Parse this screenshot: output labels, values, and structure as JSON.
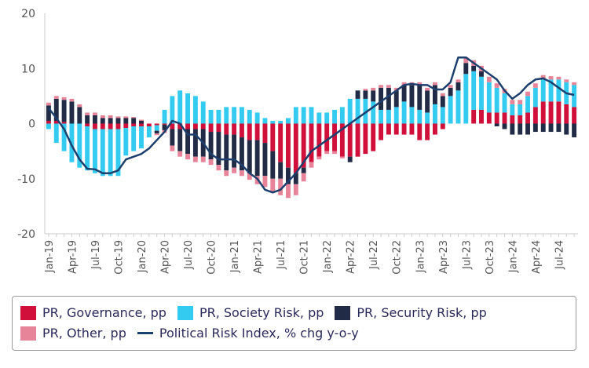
{
  "chart_data": {
    "type": "bar",
    "stacked": true,
    "ylim": [
      -20,
      20
    ],
    "yticks": [
      -20,
      -10,
      0,
      10,
      20
    ],
    "grid": false,
    "legend_position": "bottom",
    "categories": [
      "Jan-19",
      "Feb-19",
      "Mar-19",
      "Apr-19",
      "May-19",
      "Jun-19",
      "Jul-19",
      "Aug-19",
      "Sep-19",
      "Oct-19",
      "Nov-19",
      "Dec-19",
      "Jan-20",
      "Feb-20",
      "Mar-20",
      "Apr-20",
      "May-20",
      "Jun-20",
      "Jul-20",
      "Aug-20",
      "Sep-20",
      "Oct-20",
      "Nov-20",
      "Dec-20",
      "Jan-21",
      "Feb-21",
      "Mar-21",
      "Apr-21",
      "May-21",
      "Jun-21",
      "Jul-21",
      "Aug-21",
      "Sep-21",
      "Oct-21",
      "Nov-21",
      "Dec-21",
      "Jan-22",
      "Feb-22",
      "Mar-22",
      "Apr-22",
      "May-22",
      "Jun-22",
      "Jul-22",
      "Aug-22",
      "Sep-22",
      "Oct-22",
      "Nov-22",
      "Dec-22",
      "Jan-23",
      "Feb-23",
      "Mar-23",
      "Apr-23",
      "May-23",
      "Jun-23",
      "Jul-23",
      "Aug-23",
      "Sep-23",
      "Oct-23",
      "Nov-23",
      "Dec-23",
      "Jan-24",
      "Feb-24",
      "Mar-24",
      "Apr-24",
      "May-24",
      "Jun-24",
      "Jul-24",
      "Aug-24",
      "Sep-24"
    ],
    "x_tick_labels": [
      "Jan-19",
      "Apr-19",
      "Jul-19",
      "Oct-19",
      "Jan-20",
      "Apr-20",
      "Jul-20",
      "Oct-20",
      "Jan-21",
      "Apr-21",
      "Jul-21",
      "Oct-21",
      "Jan-22",
      "Apr-22",
      "Jul-22",
      "Oct-22",
      "Jan-23",
      "Apr-23",
      "Jul-23",
      "Oct-23",
      "Jan-24",
      "Apr-24",
      "Jul-24"
    ],
    "series": [
      {
        "name": "PR, Governance, pp",
        "kind": "bar",
        "color": "#d0103a",
        "values": [
          0.5,
          0.5,
          0.3,
          0,
          0,
          -0.5,
          -1,
          -1,
          -1,
          -1,
          -0.8,
          -0.5,
          -0.5,
          -0.5,
          -0.3,
          -0.2,
          -1,
          -1,
          -1,
          -1,
          -1,
          -1.5,
          -1.5,
          -2,
          -2,
          -2.5,
          -3,
          -3,
          -3.5,
          -5,
          -7,
          -8,
          -9,
          -8,
          -7,
          -6,
          -5,
          -5,
          -6,
          -6,
          -6,
          -5.5,
          -5,
          -3,
          -2,
          -2,
          -2,
          -2,
          -3,
          -3,
          -2,
          -1,
          0,
          0,
          0,
          2.5,
          2.5,
          2,
          2,
          2,
          1.5,
          1.5,
          2,
          3,
          4,
          4,
          4,
          3.5,
          3
        ]
      },
      {
        "name": "PR, Society Risk, pp",
        "kind": "bar",
        "color": "#33ccf0",
        "values": [
          -1,
          -3.5,
          -5,
          -7,
          -8,
          -8,
          -8,
          -8.5,
          -8.5,
          -8.5,
          -5,
          -4.5,
          -4,
          -2,
          -1,
          2.5,
          5,
          6,
          5.5,
          5,
          4,
          2.5,
          2.5,
          3,
          3,
          3,
          2.5,
          2,
          1,
          0.5,
          0.5,
          1,
          3,
          3,
          3,
          2,
          2,
          2.5,
          3,
          4.5,
          4.5,
          4.5,
          4,
          2.5,
          2.5,
          3,
          4,
          3,
          2.5,
          2,
          3.5,
          3,
          5,
          6,
          9,
          7,
          6,
          5.5,
          4.5,
          3.5,
          2,
          2,
          3,
          3.5,
          4,
          4,
          4,
          4,
          4
        ]
      },
      {
        "name": "PR, Security Risk, pp",
        "kind": "bar",
        "color": "#222b45",
        "values": [
          2.8,
          4,
          4,
          4,
          3,
          1.5,
          1.5,
          1,
          1,
          1,
          1,
          1,
          0.5,
          0,
          -0.5,
          -1,
          -3,
          -4,
          -4.5,
          -5,
          -5,
          -5,
          -6,
          -6.5,
          -6,
          -6,
          -6,
          -6.5,
          -6,
          -5,
          -3,
          -3,
          -2,
          -1,
          0,
          0,
          0,
          0,
          0,
          -1,
          1.5,
          1.5,
          2,
          4,
          4,
          3,
          3,
          4,
          4.5,
          4,
          3.5,
          2,
          1.5,
          1.5,
          2,
          1,
          1,
          0,
          -0.5,
          -1,
          -2,
          -2,
          -2,
          -1.5,
          -1.5,
          -1.5,
          -1.5,
          -2,
          -2.5
        ]
      },
      {
        "name": "PR, Other, pp",
        "kind": "bar",
        "color": "#e8849a",
        "values": [
          0.5,
          0.5,
          0.5,
          0.5,
          0.5,
          0.5,
          0.5,
          0.5,
          0.5,
          0.3,
          0.3,
          0.2,
          0.2,
          0,
          -0.3,
          -0.5,
          -1,
          -1,
          -1,
          -1,
          -1,
          -1,
          -1,
          -1,
          -1,
          -1,
          -1.2,
          -1.5,
          -2,
          -2.5,
          -3,
          -2.5,
          -2,
          -1.5,
          -1,
          -0.5,
          -0.5,
          -0.5,
          -0.3,
          0,
          0,
          0.3,
          0.5,
          0.5,
          0.5,
          0.5,
          0.5,
          0.5,
          0.5,
          0.5,
          0.5,
          0.5,
          0.5,
          0.5,
          1,
          1,
          1,
          1,
          0.8,
          0.8,
          0.8,
          0.8,
          0.8,
          0.8,
          0.8,
          0.6,
          0.5,
          0.5,
          0.5
        ]
      },
      {
        "name": "Political Risk Index, % chg y-o-y",
        "kind": "line",
        "color": "#1d3f6e",
        "values": [
          2.8,
          1,
          -1,
          -4,
          -6.5,
          -8.2,
          -8.3,
          -9,
          -9,
          -8.5,
          -6.5,
          -6,
          -5.5,
          -4.5,
          -3,
          -1.5,
          0.5,
          0,
          -2,
          -2,
          -3.5,
          -5.5,
          -6.5,
          -6.5,
          -6.5,
          -7.5,
          -9,
          -10,
          -12,
          -12.5,
          -12,
          -10.5,
          -9,
          -7,
          -5,
          -4,
          -3,
          -2,
          -1,
          0,
          1,
          2,
          3,
          4,
          5,
          6,
          7,
          7.2,
          7,
          7,
          6.2,
          6.2,
          7.5,
          12,
          12,
          11,
          10,
          9,
          8,
          6,
          4.5,
          5.5,
          7,
          8,
          8.2,
          7.5,
          6.5,
          5.5,
          5.2
        ]
      }
    ]
  },
  "legend": {
    "items": [
      {
        "label": "PR, Governance, pp",
        "color": "#d0103a",
        "type": "bar"
      },
      {
        "label": "PR, Society Risk, pp",
        "color": "#33ccf0",
        "type": "bar"
      },
      {
        "label": "PR, Security Risk, pp",
        "color": "#222b45",
        "type": "bar"
      },
      {
        "label": "PR, Other, pp",
        "color": "#e8849a",
        "type": "bar"
      },
      {
        "label": "Political Risk Index, % chg y-o-y",
        "color": "#1d3f6e",
        "type": "line"
      }
    ]
  }
}
